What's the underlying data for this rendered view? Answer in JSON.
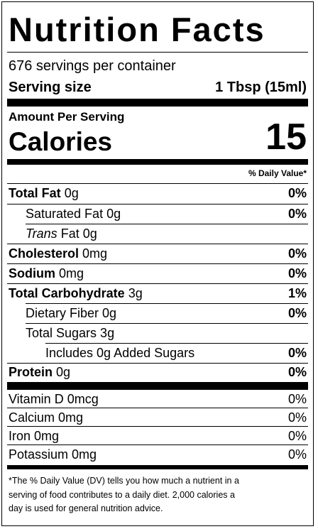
{
  "title": "Nutrition Facts",
  "servings_per_container": "676 servings per container",
  "serving_size_label": "Serving size",
  "serving_size_value": "1 Tbsp (15ml)",
  "amount_per_serving": "Amount Per Serving",
  "calories_label": "Calories",
  "calories_value": "15",
  "daily_value_header": "% Daily Value*",
  "nutrients": {
    "total_fat": {
      "label": "Total Fat",
      "amount": "0g",
      "dv": "0%"
    },
    "saturated_fat": {
      "label": "Saturated Fat 0g",
      "dv": "0%"
    },
    "trans_fat": {
      "label_italic": "Trans",
      "label_rest": "Fat 0g"
    },
    "cholesterol": {
      "label": "Cholesterol",
      "amount": "0mg",
      "dv": "0%"
    },
    "sodium": {
      "label": "Sodium",
      "amount": "0mg",
      "dv": "0%"
    },
    "total_carbohydrate": {
      "label": "Total Carbohydrate",
      "amount": "3g",
      "dv": "1%"
    },
    "dietary_fiber": {
      "label": "Dietary Fiber 0g",
      "dv": "0%"
    },
    "total_sugars": {
      "label": "Total Sugars 3g"
    },
    "added_sugars": {
      "label": "Includes 0g Added Sugars",
      "dv": "0%"
    },
    "protein": {
      "label": "Protein",
      "amount": "0g",
      "dv": "0%"
    }
  },
  "vitamins": {
    "vitamin_d": {
      "label": "Vitamin D 0mcg",
      "dv": "0%"
    },
    "calcium": {
      "label": "Calcium 0mg",
      "dv": "0%"
    },
    "iron": {
      "label": "Iron 0mg",
      "dv": "0%"
    },
    "potassium": {
      "label": "Potassium 0mg",
      "dv": "0%"
    }
  },
  "footnote": {
    "line1": "*The % Daily Value (DV) tells you how much a nutrient in a",
    "line2": "serving of food contributes to a daily diet. 2,000 calories a",
    "line3": "day is used for general nutrition advice."
  }
}
